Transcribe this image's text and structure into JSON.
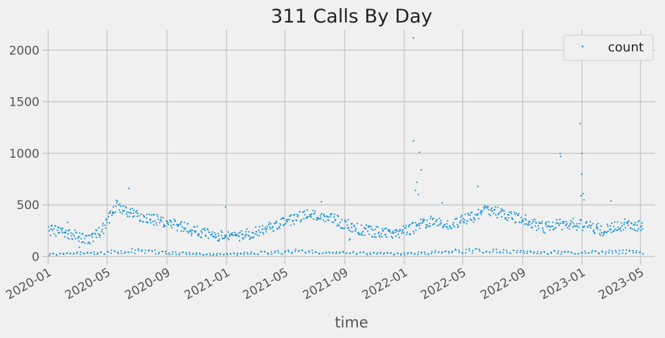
{
  "chart_data": {
    "type": "scatter",
    "title": "311 Calls By Day",
    "xlabel": "time",
    "ylabel": "",
    "xlim": [
      "2019-12-20",
      "2023-05-31"
    ],
    "ylim": [
      -80,
      2200
    ],
    "x_ticks": [
      "2020-01-01",
      "2020-05-01",
      "2020-09-01",
      "2021-01-01",
      "2021-05-01",
      "2021-09-01",
      "2022-01-01",
      "2022-05-01",
      "2022-09-01",
      "2023-01-01",
      "2023-05-01"
    ],
    "x_tick_labels": [
      "2020-01",
      "2020-05",
      "2020-09",
      "2021-01",
      "2021-05",
      "2021-09",
      "2022-01",
      "2022-05",
      "2022-09",
      "2023-01",
      "2023-05"
    ],
    "y_ticks": [
      0,
      500,
      1000,
      1500,
      2000
    ],
    "y_tick_labels": [
      "0",
      "500",
      "1000",
      "1500",
      "2000"
    ],
    "grid": true,
    "legend_position": "top-right",
    "series": [
      {
        "name": "count",
        "color": "#1f96d4",
        "anchors": {
          "weekday": [
            [
              "2020-01-05",
              250
            ],
            [
              "2020-02-15",
              220
            ],
            [
              "2020-03-20",
              160
            ],
            [
              "2020-04-20",
              240
            ],
            [
              "2020-05-20",
              490
            ],
            [
              "2020-07-01",
              400
            ],
            [
              "2020-09-01",
              330
            ],
            [
              "2020-11-01",
              240
            ],
            [
              "2021-01-01",
              190
            ],
            [
              "2021-03-01",
              230
            ],
            [
              "2021-05-01",
              330
            ],
            [
              "2021-06-15",
              410
            ],
            [
              "2021-08-15",
              350
            ],
            [
              "2021-10-01",
              260
            ],
            [
              "2021-11-20",
              230
            ],
            [
              "2022-01-01",
              240
            ],
            [
              "2022-02-20",
              340
            ],
            [
              "2022-04-01",
              300
            ],
            [
              "2022-05-20",
              380
            ],
            [
              "2022-06-20",
              450
            ],
            [
              "2022-08-01",
              400
            ],
            [
              "2022-09-01",
              360
            ],
            [
              "2022-10-15",
              280
            ],
            [
              "2022-12-01",
              320
            ],
            [
              "2023-01-10",
              300
            ],
            [
              "2023-02-15",
              250
            ],
            [
              "2023-04-01",
              310
            ],
            [
              "2023-05-05",
              300
            ]
          ],
          "weekend": [
            [
              "2020-01-05",
              20
            ],
            [
              "2020-05-01",
              40
            ],
            [
              "2020-07-01",
              55
            ],
            [
              "2020-09-01",
              35
            ],
            [
              "2021-01-01",
              20
            ],
            [
              "2021-06-01",
              50
            ],
            [
              "2021-09-01",
              35
            ],
            [
              "2022-01-01",
              25
            ],
            [
              "2022-06-01",
              60
            ],
            [
              "2022-09-01",
              40
            ],
            [
              "2023-01-01",
              40
            ],
            [
              "2023-05-05",
              45
            ]
          ]
        },
        "spread": 55,
        "outliers": [
          [
            "2022-01-20",
            2120
          ],
          [
            "2022-01-20",
            1120
          ],
          [
            "2022-02-01",
            1010
          ],
          [
            "2022-02-05",
            840
          ],
          [
            "2022-01-27",
            720
          ],
          [
            "2022-01-30",
            600
          ],
          [
            "2022-01-24",
            640
          ],
          [
            "2022-12-28",
            1290
          ],
          [
            "2022-11-17",
            1000
          ],
          [
            "2022-11-18",
            970
          ],
          [
            "2023-01-01",
            1000
          ],
          [
            "2022-12-31",
            800
          ],
          [
            "2023-01-03",
            610
          ],
          [
            "2022-12-30",
            590
          ],
          [
            "2023-01-05",
            550
          ],
          [
            "2020-06-15",
            660
          ],
          [
            "2021-07-15",
            530
          ],
          [
            "2023-03-01",
            540
          ],
          [
            "2020-12-30",
            480
          ],
          [
            "2021-09-10",
            160
          ],
          [
            "2021-09-12",
            170
          ],
          [
            "2020-03-05",
            90
          ],
          [
            "2020-02-10",
            330
          ],
          [
            "2022-06-01",
            680
          ],
          [
            "2022-03-20",
            520
          ]
        ]
      }
    ]
  }
}
